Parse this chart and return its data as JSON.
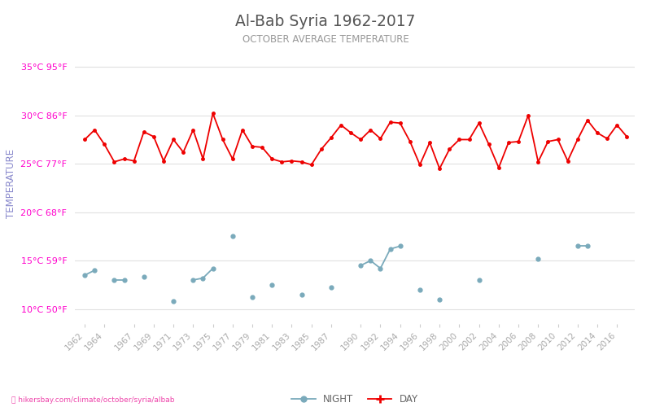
{
  "title": "Al-Bab Syria 1962-2017",
  "subtitle": "OCTOBER AVERAGE TEMPERATURE",
  "ylabel": "TEMPERATURE",
  "background_color": "#ffffff",
  "title_color": "#555555",
  "subtitle_color": "#999999",
  "ylabel_color": "#8888cc",
  "grid_color": "#e0e0e0",
  "day_color": "#ee0000",
  "night_color": "#7aaabb",
  "tick_label_color": "#ff00cc",
  "years": [
    1962,
    1963,
    1964,
    1965,
    1966,
    1967,
    1968,
    1969,
    1970,
    1971,
    1972,
    1973,
    1974,
    1975,
    1976,
    1977,
    1978,
    1979,
    1980,
    1981,
    1982,
    1983,
    1984,
    1985,
    1986,
    1987,
    1988,
    1989,
    1990,
    1991,
    1992,
    1993,
    1994,
    1995,
    1996,
    1997,
    1998,
    1999,
    2000,
    2001,
    2002,
    2003,
    2004,
    2005,
    2006,
    2007,
    2008,
    2009,
    2010,
    2011,
    2012,
    2013,
    2014,
    2015,
    2016,
    2017
  ],
  "day_temps": [
    27.5,
    28.5,
    27.0,
    25.2,
    25.5,
    25.3,
    28.3,
    27.8,
    25.3,
    27.5,
    26.2,
    28.5,
    25.5,
    30.2,
    27.5,
    25.5,
    28.5,
    26.8,
    26.7,
    25.5,
    25.2,
    25.3,
    25.2,
    24.9,
    26.5,
    27.7,
    29.0,
    28.2,
    27.5,
    28.5,
    27.6,
    29.3,
    29.2,
    27.3,
    24.9,
    27.2,
    24.5,
    26.5,
    27.5,
    27.5,
    29.2,
    27.0,
    24.6,
    27.2,
    27.3,
    30.0,
    25.2,
    27.3,
    27.5,
    25.3,
    27.5,
    29.5,
    28.2,
    27.6,
    29.0,
    27.8
  ],
  "night_temps": [
    13.5,
    14.0,
    null,
    13.0,
    13.0,
    null,
    13.3,
    null,
    null,
    10.8,
    null,
    13.0,
    13.2,
    14.2,
    null,
    17.5,
    null,
    11.2,
    null,
    12.5,
    null,
    null,
    11.5,
    null,
    null,
    12.2,
    null,
    null,
    14.5,
    15.0,
    14.2,
    16.2,
    16.5,
    null,
    12.0,
    null,
    11.0,
    null,
    null,
    null,
    13.0,
    null,
    null,
    null,
    null,
    null,
    15.2,
    null,
    null,
    null,
    16.5,
    16.5,
    null,
    null,
    null,
    null
  ],
  "yticks_celsius": [
    10,
    15,
    20,
    25,
    30,
    35
  ],
  "yticks_fahrenheit": [
    50,
    59,
    68,
    77,
    86,
    95
  ],
  "ylim": [
    8.5,
    37.5
  ],
  "xlim_left": 1961.0,
  "xlim_right": 2017.8,
  "xtick_years": [
    1962,
    1964,
    1967,
    1969,
    1971,
    1973,
    1975,
    1977,
    1979,
    1981,
    1983,
    1985,
    1987,
    1990,
    1992,
    1994,
    1996,
    1998,
    2000,
    2002,
    2004,
    2006,
    2008,
    2010,
    2012,
    2014,
    2016
  ],
  "footer": "hikersbay.com/climate/october/syria/albab",
  "legend_night": "NIGHT",
  "legend_day": "DAY"
}
